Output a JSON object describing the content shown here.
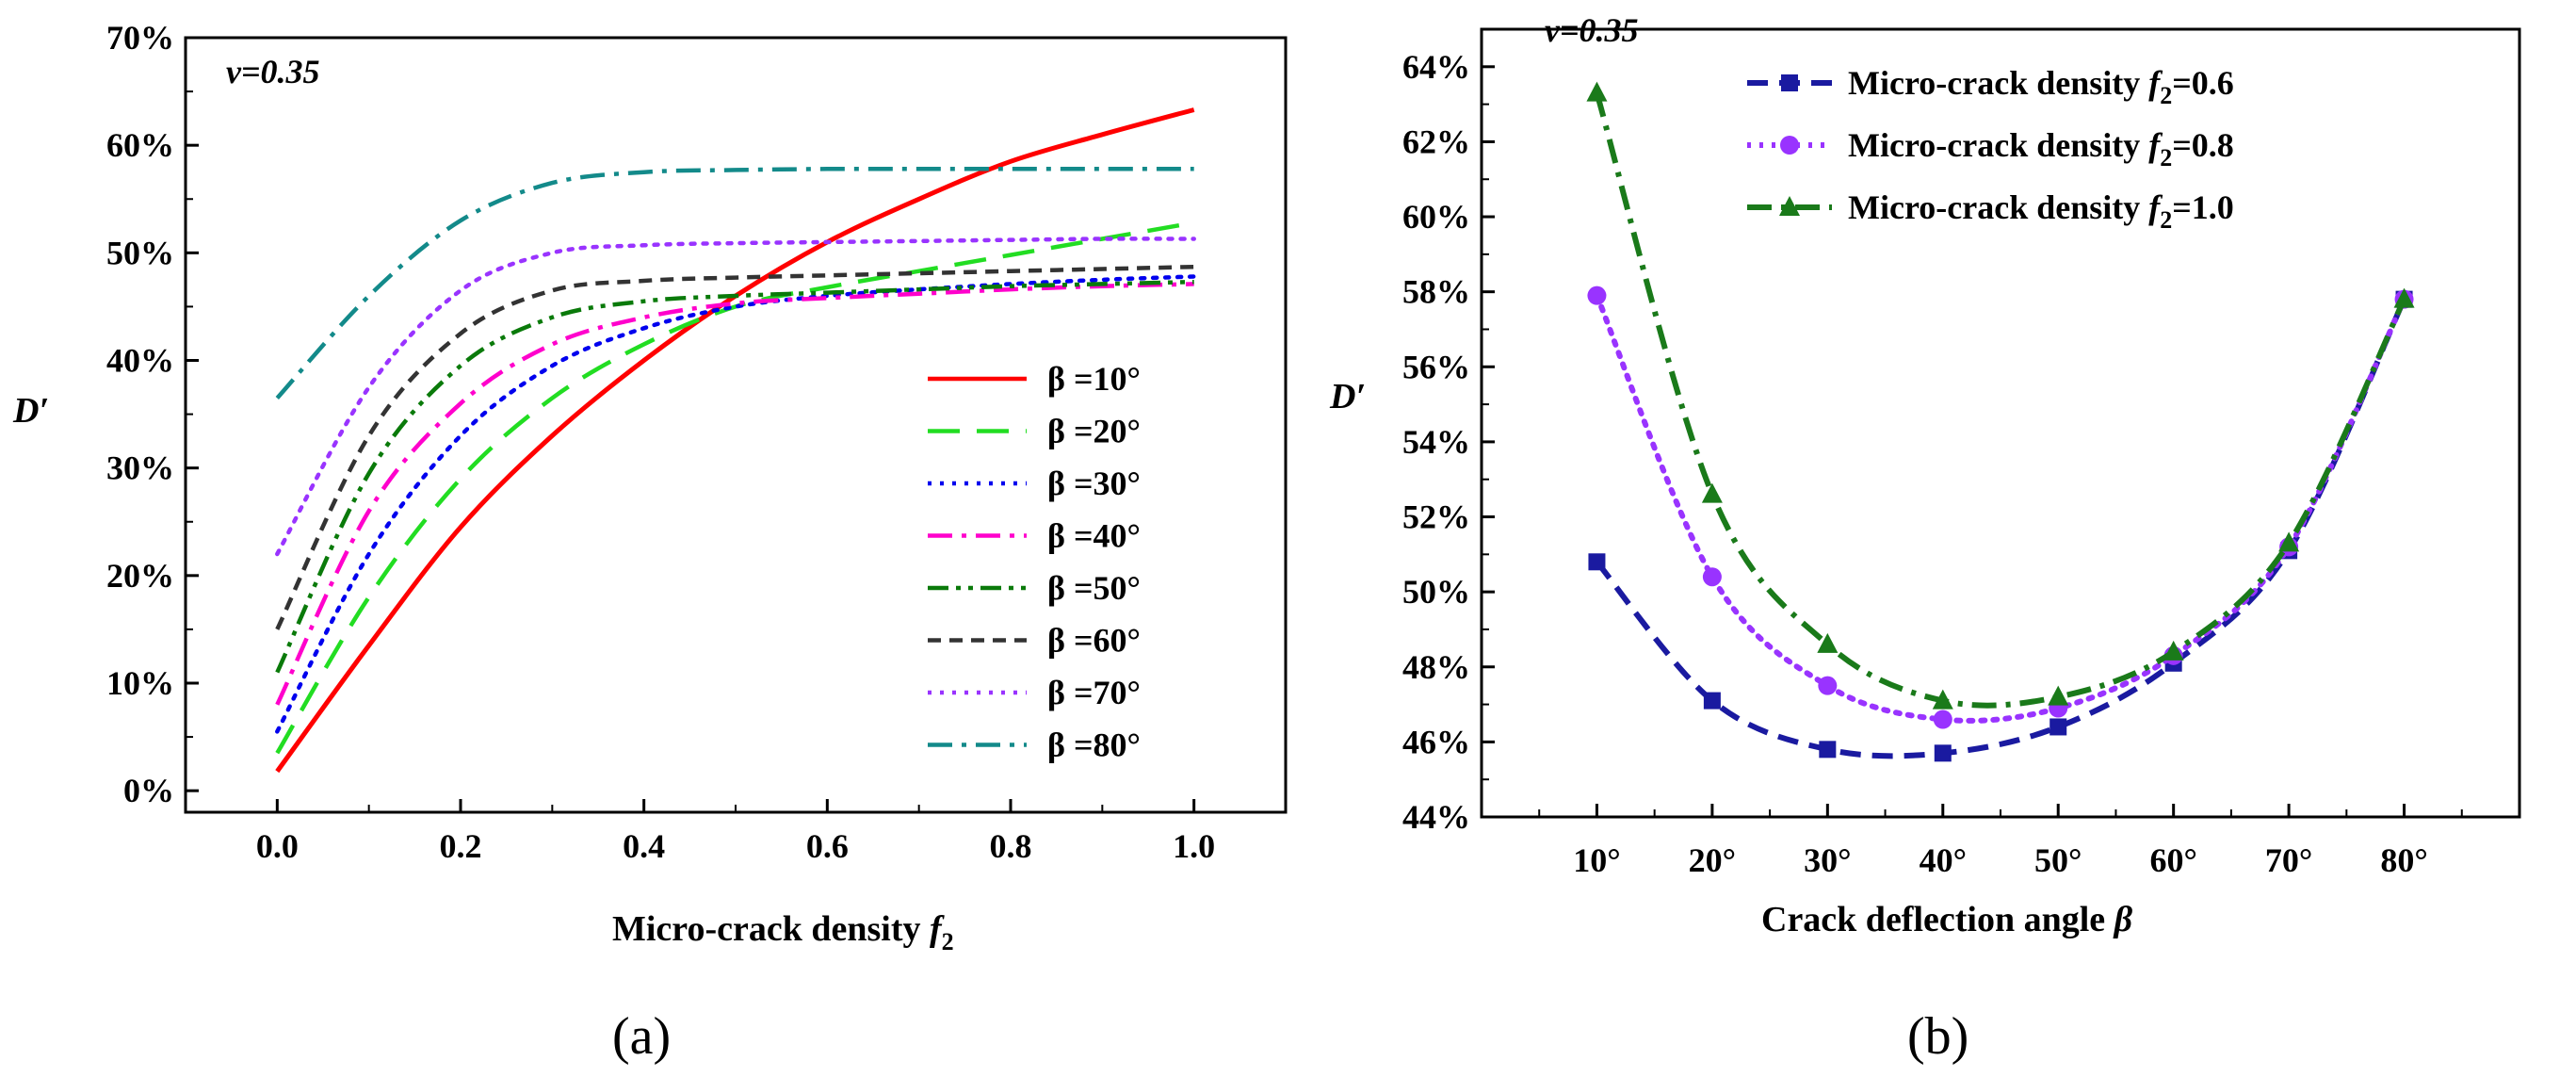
{
  "chart_data": [
    {
      "type": "line",
      "panel_label": "(a)",
      "annotation": "v=0.35",
      "xlabel": "Micro-crack density f2",
      "ylabel": "D′",
      "xlim": [
        -0.1,
        1.1
      ],
      "ylim": [
        -2,
        70
      ],
      "xticks": [
        0.0,
        0.2,
        0.4,
        0.6,
        0.8,
        1.0
      ],
      "xtick_labels": [
        "0.0",
        "0.2",
        "0.4",
        "0.6",
        "0.8",
        "1.0"
      ],
      "yticks": [
        0,
        10,
        20,
        30,
        40,
        50,
        60,
        70
      ],
      "ytick_labels": [
        "0%",
        "10%",
        "20%",
        "30%",
        "40%",
        "50%",
        "60%",
        "70%"
      ],
      "legend_position": "center-right",
      "series": [
        {
          "name": "β =10°",
          "color": "#ff0000",
          "dash": "solid",
          "x": [
            0,
            0.1,
            0.2,
            0.3,
            0.4,
            0.5,
            0.6,
            0.7,
            0.8,
            0.9,
            1.0
          ],
          "values": [
            1.8,
            13.5,
            24.5,
            33,
            40,
            46,
            51,
            55,
            58.5,
            61,
            63.3
          ]
        },
        {
          "name": "β =20°",
          "color": "#22dd22",
          "dash": "long-dash",
          "x": [
            0,
            0.1,
            0.2,
            0.3,
            0.4,
            0.5,
            0.6,
            0.7,
            0.8,
            0.9,
            1.0
          ],
          "values": [
            3.5,
            18,
            29,
            36.5,
            41.5,
            45,
            46.8,
            48.3,
            49.8,
            51.3,
            52.8
          ]
        },
        {
          "name": "β =30°",
          "color": "#0000ee",
          "dash": "dot",
          "x": [
            0,
            0.1,
            0.2,
            0.3,
            0.4,
            0.5,
            0.6,
            0.7,
            0.8,
            0.9,
            1.0
          ],
          "values": [
            5.5,
            22,
            33,
            39.5,
            43,
            45,
            46,
            46.6,
            47.1,
            47.5,
            47.8
          ]
        },
        {
          "name": "β =40°",
          "color": "#ff00cc",
          "dash": "dash-dot",
          "x": [
            0,
            0.1,
            0.2,
            0.3,
            0.4,
            0.5,
            0.6,
            0.7,
            0.8,
            0.9,
            1.0
          ],
          "values": [
            8,
            26,
            36,
            41.5,
            44,
            45.3,
            45.8,
            46.2,
            46.6,
            46.9,
            47.1
          ]
        },
        {
          "name": "β =50°",
          "color": "#0a7a0a",
          "dash": "dash-dot-dot",
          "x": [
            0,
            0.1,
            0.2,
            0.3,
            0.4,
            0.5,
            0.6,
            0.7,
            0.8,
            0.9,
            1.0
          ],
          "values": [
            11,
            29.5,
            39.5,
            44,
            45.5,
            46,
            46.3,
            46.6,
            46.9,
            47.1,
            47.3
          ]
        },
        {
          "name": "β =60°",
          "color": "#333333",
          "dash": "short-dash",
          "x": [
            0,
            0.1,
            0.2,
            0.3,
            0.4,
            0.5,
            0.6,
            0.7,
            0.8,
            0.9,
            1.0
          ],
          "values": [
            15,
            33,
            42.5,
            46.5,
            47.4,
            47.7,
            47.9,
            48.1,
            48.3,
            48.5,
            48.7
          ]
        },
        {
          "name": "β =70°",
          "color": "#9933ff",
          "dash": "dot",
          "x": [
            0,
            0.1,
            0.2,
            0.3,
            0.4,
            0.5,
            0.6,
            0.7,
            0.8,
            0.9,
            1.0
          ],
          "values": [
            22,
            37.5,
            46.5,
            50,
            50.7,
            50.9,
            51,
            51.1,
            51.2,
            51.3,
            51.3
          ]
        },
        {
          "name": "β =80°",
          "color": "#138a8a",
          "dash": "dash-dot",
          "x": [
            0,
            0.1,
            0.2,
            0.3,
            0.4,
            0.5,
            0.6,
            0.7,
            0.8,
            0.9,
            1.0
          ],
          "values": [
            36.5,
            46,
            53,
            56.5,
            57.5,
            57.7,
            57.8,
            57.8,
            57.8,
            57.8,
            57.8
          ]
        }
      ]
    },
    {
      "type": "line",
      "panel_label": "(b)",
      "annotation": "v=0.35",
      "xlabel": "Crack deflection angle β",
      "ylabel": "D′",
      "xlim": [
        0,
        90
      ],
      "ylim": [
        44,
        65
      ],
      "categories": [
        "10°",
        "20°",
        "30°",
        "40°",
        "50°",
        "60°",
        "70°",
        "80°"
      ],
      "x": [
        10,
        20,
        30,
        40,
        50,
        60,
        70,
        80
      ],
      "yticks": [
        44,
        46,
        48,
        50,
        52,
        54,
        56,
        58,
        60,
        62,
        64
      ],
      "ytick_labels": [
        "44%",
        "46%",
        "48%",
        "50%",
        "52%",
        "54%",
        "56%",
        "58%",
        "60%",
        "62%",
        "64%"
      ],
      "legend_position": "top-center",
      "series": [
        {
          "name": "Micro-crack density ",
          "f_label": "f2=0.6",
          "color": "#1a1aa0",
          "dash": "dash",
          "marker": "square",
          "values": [
            50.8,
            47.1,
            45.8,
            45.7,
            46.4,
            48.1,
            51.1,
            57.8
          ]
        },
        {
          "name": "Micro-crack density ",
          "f_label": "f2=0.8",
          "color": "#9933ff",
          "dash": "dot",
          "marker": "circle",
          "values": [
            57.9,
            50.4,
            47.5,
            46.6,
            46.9,
            48.3,
            51.2,
            57.8
          ]
        },
        {
          "name": "Micro-crack density ",
          "f_label": "f2=1.0",
          "color": "#1a7a1a",
          "dash": "dash-dot",
          "marker": "triangle",
          "values": [
            63.3,
            52.6,
            48.6,
            47.1,
            47.2,
            48.4,
            51.3,
            57.8
          ]
        }
      ]
    }
  ]
}
